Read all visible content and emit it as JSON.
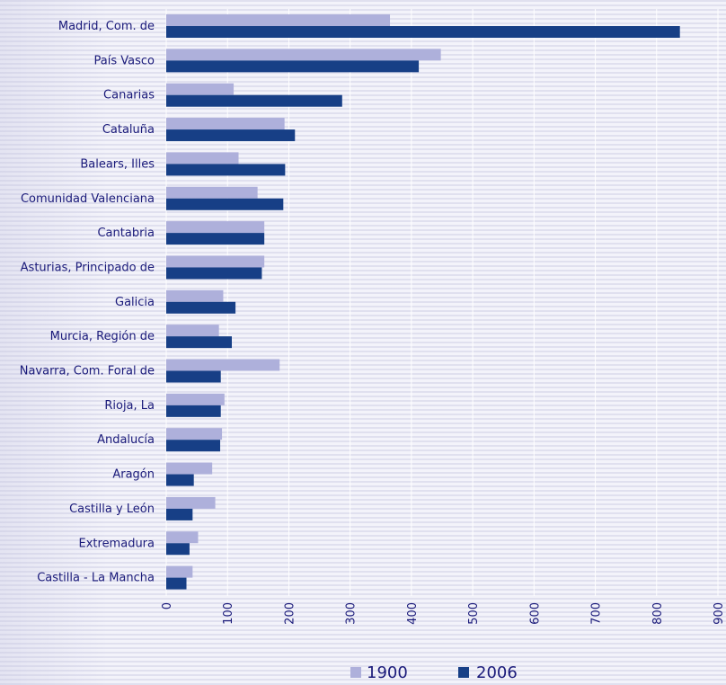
{
  "colors": {
    "series_1900": "#aeb0db",
    "series_2006": "#173f86",
    "grid": "#ffffff",
    "text": "#1a1a7a"
  },
  "chart_data": {
    "type": "bar",
    "orientation": "horizontal",
    "categories": [
      "Madrid, Com. de",
      "País Vasco",
      "Canarias",
      "Cataluña",
      "Balears, Illes",
      "Comunidad Valenciana",
      "Cantabria",
      "Asturias, Principado de",
      "Galicia",
      "Murcia, Región de",
      "Navarra, Com. Foral de",
      "Rioja, La",
      "Andalucía",
      "Aragón",
      "Castilla y León",
      "Extremadura",
      "Castilla - La Mancha"
    ],
    "series": [
      {
        "name": "1900",
        "values": [
          365,
          448,
          110,
          193,
          118,
          149,
          160,
          160,
          93,
          86,
          185,
          95,
          91,
          75,
          80,
          52,
          43
        ]
      },
      {
        "name": "2006",
        "values": [
          838,
          412,
          287,
          210,
          194,
          191,
          160,
          156,
          113,
          107,
          89,
          89,
          88,
          45,
          43,
          38,
          33
        ]
      }
    ],
    "x_ticks": [
      "0",
      "100",
      "200",
      "300",
      "400",
      "500",
      "600",
      "700",
      "800",
      "900"
    ],
    "xlim": [
      0,
      900
    ],
    "grid": true,
    "legend_position": "bottom"
  }
}
